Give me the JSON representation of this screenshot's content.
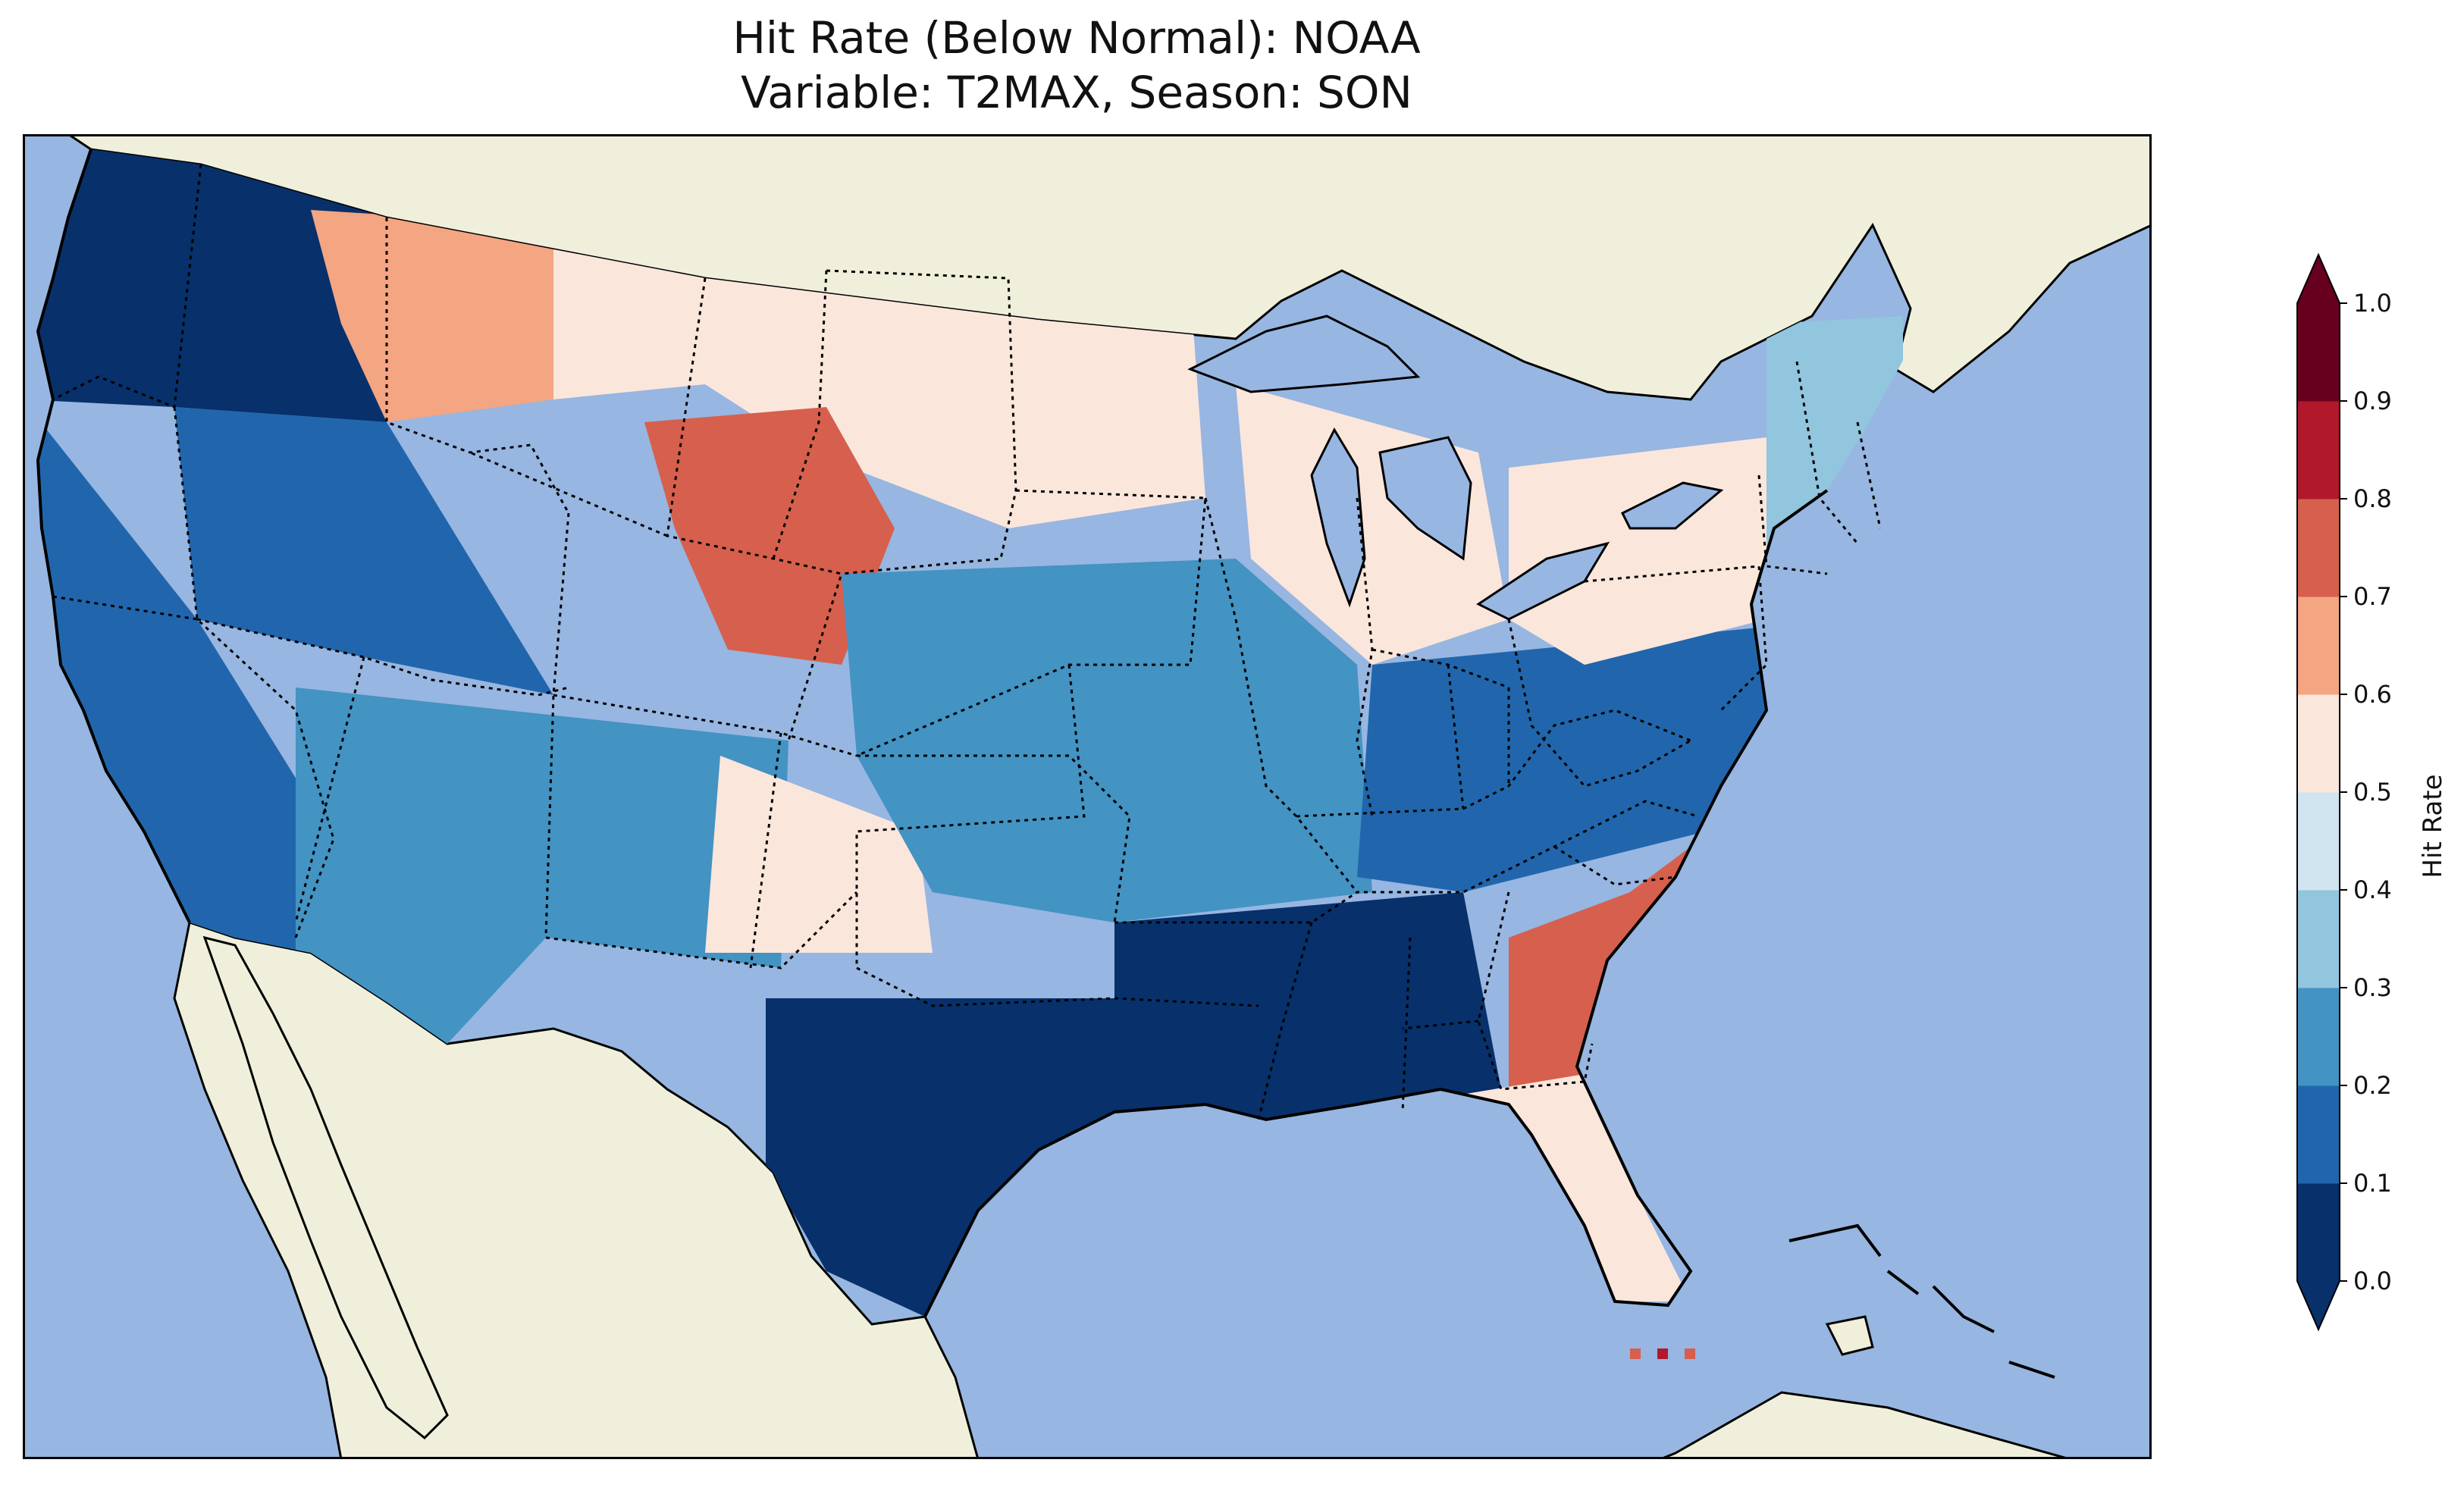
{
  "title": {
    "line1": "Hit Rate (Below Normal): NOAA",
    "line2": "Variable: T2MAX, Season: SON"
  },
  "map": {
    "region": "Contiguous United States",
    "projection": "Lambert conformal",
    "ocean_color": "#97b6e1",
    "land_color": "#efefdb",
    "regions": [
      {
        "name": "Pacific Northwest coast",
        "hit_rate": 0.05
      },
      {
        "name": "California",
        "hit_rate": 0.15
      },
      {
        "name": "Great Basin",
        "hit_rate": 0.15
      },
      {
        "name": "Idaho panhandle / Montana west",
        "hit_rate": 0.65
      },
      {
        "name": "Montana / Dakotas",
        "hit_rate": 0.55
      },
      {
        "name": "Wyoming / eastern Colorado",
        "hit_rate": 0.75
      },
      {
        "name": "Southwest (AZ/NM)",
        "hit_rate": 0.25
      },
      {
        "name": "West Texas / eastern NM",
        "hit_rate": 0.55
      },
      {
        "name": "Central Plains / Midwest",
        "hit_rate": 0.25
      },
      {
        "name": "Michigan / Wisconsin",
        "hit_rate": 0.55
      },
      {
        "name": "Ohio Valley / Mid-Atlantic",
        "hit_rate": 0.15
      },
      {
        "name": "Gulf Coast / Deep South",
        "hit_rate": 0.05
      },
      {
        "name": "South Texas",
        "hit_rate": 0.05
      },
      {
        "name": "Georgia / South Carolina",
        "hit_rate": 0.75
      },
      {
        "name": "Florida peninsula",
        "hit_rate": 0.55
      },
      {
        "name": "New England",
        "hit_rate": 0.35
      },
      {
        "name": "Upstate New York",
        "hit_rate": 0.55
      },
      {
        "name": "Florida Keys",
        "hit_rate": 0.85
      }
    ]
  },
  "colorbar": {
    "label": "Hit Rate",
    "ticks": [
      "0.0",
      "0.1",
      "0.2",
      "0.3",
      "0.4",
      "0.5",
      "0.6",
      "0.7",
      "0.8",
      "0.9",
      "1.0"
    ],
    "colors": [
      "#08306b",
      "#2166ac",
      "#4393c3",
      "#92c5de",
      "#d1e5f0",
      "#fbe6dc",
      "#f4a582",
      "#d6604d",
      "#b2182b",
      "#67001f"
    ],
    "under_color": "#08306b",
    "over_color": "#67001f"
  }
}
